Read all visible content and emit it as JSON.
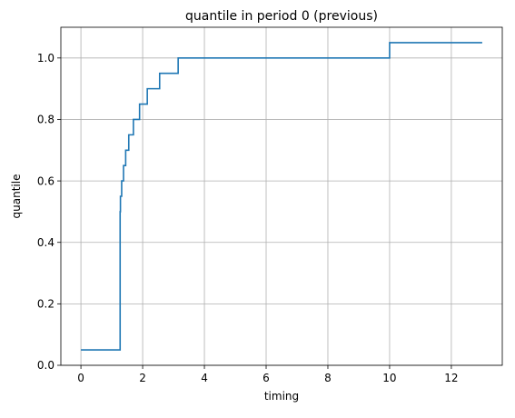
{
  "chart_data": {
    "type": "line",
    "title": "quantile in period 0 (previous)",
    "xlabel": "timing",
    "ylabel": "quantile",
    "xlim": [
      -0.65,
      13.65
    ],
    "ylim": [
      0.0,
      1.1
    ],
    "xticks": [
      0,
      2,
      4,
      6,
      8,
      10,
      12
    ],
    "xtick_labels": [
      "0",
      "2",
      "4",
      "6",
      "8",
      "10",
      "12"
    ],
    "yticks": [
      0.0,
      0.2,
      0.4,
      0.6,
      0.8,
      1.0
    ],
    "ytick_labels": [
      "0.0",
      "0.2",
      "0.4",
      "0.6",
      "0.8",
      "1.0"
    ],
    "grid": true,
    "step_where": "post",
    "series": [
      {
        "color": "#1f77b4",
        "x": [
          0.0,
          1.27,
          1.28,
          1.32,
          1.38,
          1.45,
          1.55,
          1.7,
          1.9,
          2.15,
          2.55,
          3.15,
          4.4,
          10.0,
          13.0
        ],
        "y": [
          0.05,
          0.5,
          0.55,
          0.6,
          0.65,
          0.7,
          0.75,
          0.8,
          0.85,
          0.9,
          0.95,
          1.0,
          1.0,
          1.05,
          1.05
        ]
      }
    ]
  }
}
